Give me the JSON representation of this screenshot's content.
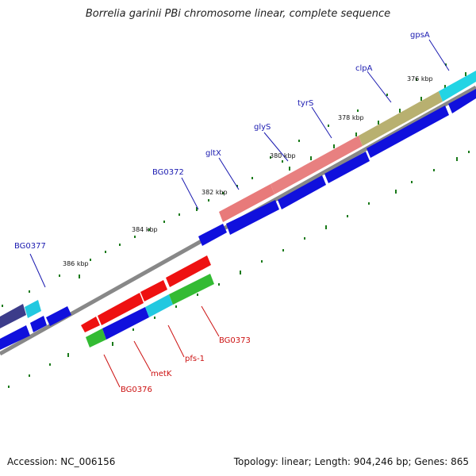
{
  "title": "Borrelia garinii PBi chromosome linear, complete sequence",
  "footer": {
    "accession": "Accession: NC_006156",
    "summary": "Topology: linear; Length: 904,246 bp; Genes: 865"
  },
  "scale_labels": [
    "376 kbp",
    "378 kbp",
    "380 kbp",
    "382 kbp",
    "384 kbp",
    "386 kbp"
  ],
  "genes_top": [
    "gpsA",
    "clpA",
    "tyrS",
    "glyS",
    "gltX",
    "BG0372",
    "BG0377"
  ],
  "genes_bottom": [
    "BG0373",
    "pfs-1",
    "metK",
    "BG0376"
  ],
  "colors": {
    "forward_label": "#1a1ab0",
    "reverse_label": "#cc1111",
    "cds_blue": "#1010dd",
    "red": "#ee1111",
    "pink": "#e87a7a",
    "olive": "#b8b070",
    "cyan": "#22c8e0",
    "green": "#33bb33",
    "backbone": "#777777",
    "tick": "#1a7a1a"
  }
}
